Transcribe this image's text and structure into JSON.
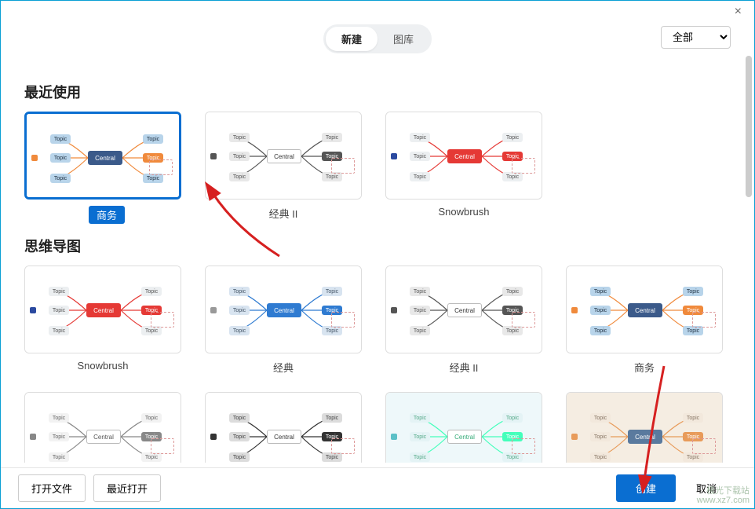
{
  "window": {
    "close_icon": "×"
  },
  "header": {
    "tabs": [
      {
        "label": "新建",
        "active": true
      },
      {
        "label": "图库",
        "active": false
      }
    ],
    "filter_selected": "全部"
  },
  "sections": {
    "recent": {
      "title": "最近使用",
      "items": [
        {
          "label": "商务",
          "selected": true,
          "style": "business",
          "central_label": "Central",
          "topic_label": "Topic",
          "colors": {
            "central_bg": "#3b5a8a",
            "topic_bg": "#b8d4ea",
            "accent": "#f08a3c",
            "side": "#f08a3c",
            "topic_text": "#234"
          }
        },
        {
          "label": "经典 II",
          "selected": false,
          "style": "classic2",
          "central_label": "Central",
          "topic_label": "Topic",
          "colors": {
            "central_bg": "#ffffff",
            "central_text": "#333",
            "topic_bg": "#e8e8e8",
            "accent": "#555",
            "line1": "#d94",
            "line2": "#3a8",
            "line3": "#48c",
            "topic_text": "#555"
          }
        },
        {
          "label": "Snowbrush",
          "selected": false,
          "style": "snowbrush",
          "central_label": "Central",
          "topic_label": "Topic",
          "colors": {
            "central_bg": "#e53935",
            "topic_bg": "#eceff1",
            "accent": "#e53935",
            "side": "#2b4aa0",
            "topic_text": "#555"
          }
        }
      ]
    },
    "mindmap": {
      "title": "思维导图",
      "items": [
        {
          "label": "Snowbrush",
          "style": "snowbrush",
          "central_label": "Central",
          "topic_label": "Topic",
          "colors": {
            "central_bg": "#e53935",
            "topic_bg": "#eceff1",
            "accent": "#e53935",
            "side": "#2b4aa0",
            "topic_text": "#555"
          }
        },
        {
          "label": "经典",
          "style": "classic",
          "central_label": "Central",
          "topic_label": "Topic",
          "colors": {
            "central_bg": "#2f7bd1",
            "topic_bg": "#d8e4f0",
            "accent": "#2f7bd1",
            "side": "#999",
            "topic_text": "#456"
          }
        },
        {
          "label": "经典 II",
          "style": "classic2",
          "central_label": "Central",
          "topic_label": "Topic",
          "colors": {
            "central_bg": "#ffffff",
            "central_text": "#333",
            "topic_bg": "#e8e8e8",
            "accent": "#555",
            "topic_text": "#555"
          }
        },
        {
          "label": "商务",
          "style": "business",
          "central_label": "Central",
          "topic_label": "Topic",
          "colors": {
            "central_bg": "#3b5a8a",
            "topic_bg": "#b8d4ea",
            "accent": "#f08a3c",
            "side": "#f08a3c",
            "topic_text": "#234"
          }
        },
        {
          "label": "",
          "style": "plain",
          "central_label": "Central",
          "topic_label": "Topic",
          "colors": {
            "central_bg": "#ffffff",
            "central_text": "#555",
            "topic_bg": "#f2f2f2",
            "accent": "#888",
            "side": "#888",
            "topic_text": "#666"
          }
        },
        {
          "label": "",
          "style": "dark",
          "central_label": "Central",
          "topic_label": "Topic",
          "colors": {
            "central_bg": "#ffffff",
            "central_text": "#333",
            "topic_bg": "#dcdcdc",
            "accent": "#333",
            "side": "#333",
            "topic_text": "#444"
          }
        },
        {
          "label": "",
          "style": "aqua",
          "central_label": "Central",
          "topic_label": "Topic",
          "colors": {
            "central_bg": "#ffffff",
            "central_text": "#3a7",
            "topic_bg": "#e4f3f5",
            "accent": "#4fb",
            "side": "#5bc0c7",
            "topic_text": "#5a8",
            "page_bg": "#eef8fa"
          }
        },
        {
          "label": "",
          "style": "warm",
          "central_label": "Central",
          "topic_label": "Topic",
          "colors": {
            "central_bg": "#5a7a9e",
            "topic_bg": "#f2e8dc",
            "accent": "#e89b5a",
            "side": "#e89b5a",
            "topic_text": "#876",
            "page_bg": "#f5ede2"
          }
        }
      ]
    }
  },
  "footer": {
    "open_file": "打开文件",
    "recent_open": "最近打开",
    "create": "创建",
    "cancel": "取消"
  },
  "watermark": {
    "line1": "极光下载站",
    "line2": "www.xz7.com"
  },
  "annotation_arrows": {
    "color": "#d62020"
  }
}
